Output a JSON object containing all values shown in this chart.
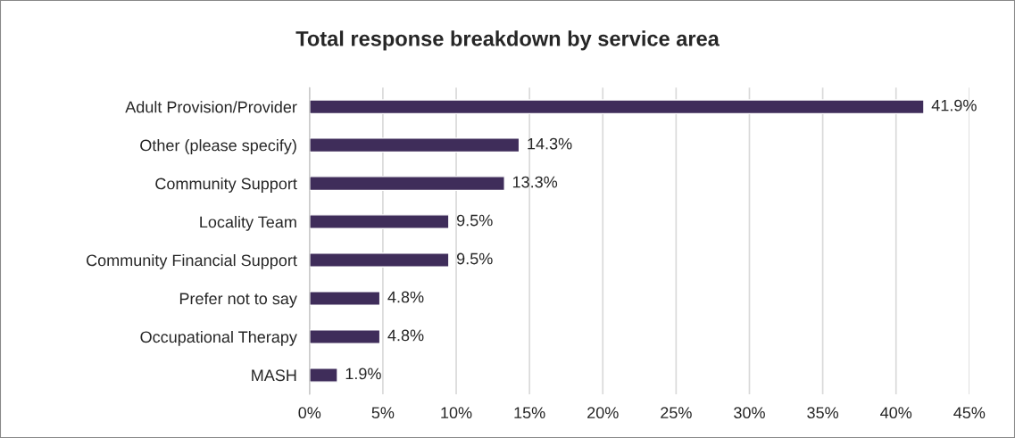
{
  "chart_data": {
    "type": "bar",
    "orientation": "horizontal",
    "title": "Total response breakdown by service area",
    "categories": [
      "Adult Provision/Provider",
      "Other (please specify)",
      "Community Support",
      "Locality Team",
      "Community Financial Support",
      "Prefer not to say",
      "Occupational Therapy",
      "MASH"
    ],
    "values": [
      41.9,
      14.3,
      13.3,
      9.5,
      9.5,
      4.8,
      4.8,
      1.9
    ],
    "value_labels": [
      "41.9%",
      "14.3%",
      "13.3%",
      "9.5%",
      "9.5%",
      "4.8%",
      "4.8%",
      "1.9%"
    ],
    "color": "#3f2d5a",
    "xlim": [
      0,
      45
    ],
    "xticks": [
      {
        "value": 0,
        "label": "0%"
      },
      {
        "value": 5,
        "label": "5%"
      },
      {
        "value": 10,
        "label": "10%"
      },
      {
        "value": 15,
        "label": "15%"
      },
      {
        "value": 20,
        "label": "20%"
      },
      {
        "value": 25,
        "label": "25%"
      },
      {
        "value": 30,
        "label": "30%"
      },
      {
        "value": 35,
        "label": "35%"
      },
      {
        "value": 40,
        "label": "40%"
      },
      {
        "value": 45,
        "label": "45%"
      }
    ],
    "grid": "x"
  }
}
